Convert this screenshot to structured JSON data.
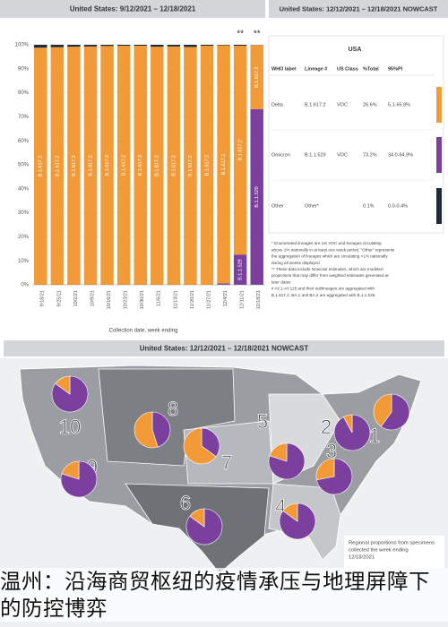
{
  "chart_data": {
    "type": "bar",
    "title": "United States: 9/12/2021 – 12/18/2021",
    "categories": [
      "9/18/21",
      "9/25/21",
      "10/2/21",
      "10/9/21",
      "10/16/21",
      "10/23/21",
      "10/30/21",
      "11/6/21",
      "11/13/21",
      "11/20/21",
      "11/27/21",
      "12/4/21",
      "12/11/21",
      "12/18/21"
    ],
    "series": [
      {
        "name": "B.1.1.529",
        "color": "#7b3f9e",
        "values": [
          0,
          0,
          0,
          0,
          0,
          0,
          0,
          0,
          0,
          0,
          0,
          0.6,
          12.6,
          73.2
        ]
      },
      {
        "name": "B.1.617.2",
        "color": "#f29a38",
        "values": [
          98.8,
          99.0,
          99.2,
          99.3,
          99.5,
          99.6,
          99.6,
          99.2,
          99.3,
          99.1,
          99.6,
          99.2,
          87.0,
          26.6
        ]
      },
      {
        "color": "#1f2a36",
        "values": [
          1.2,
          1.0,
          0.8,
          0.7,
          0.5,
          0.4,
          0.4,
          0.8,
          0.7,
          0.9,
          0.4,
          0.2,
          0.4,
          0.1
        ]
      }
    ],
    "ylim": [
      0,
      100
    ],
    "yticks": [
      {
        "value": 0,
        "label": "0%"
      },
      {
        "value": 10,
        "label": "10%"
      },
      {
        "value": 20,
        "label": "20%"
      },
      {
        "value": 30,
        "label": "30%"
      },
      {
        "value": 40,
        "label": "40%"
      },
      {
        "value": 50,
        "label": "50%"
      },
      {
        "value": 60,
        "label": "60%"
      },
      {
        "value": 70,
        "label": "70%"
      },
      {
        "value": 80,
        "label": "80%"
      },
      {
        "value": 90,
        "label": "90%"
      },
      {
        "value": 100,
        "label": "100%"
      }
    ],
    "grid": true,
    "xlabel": "Collection date, week ending",
    "annotations": [
      "**",
      "**"
    ]
  },
  "nowcast": {
    "title": "United States: 12/12/2021 – 12/18/2021 NOWCAST",
    "table_title": "USA",
    "header": [
      "WHO label",
      "Lineage #",
      "US Class",
      "%Total",
      "95%PI"
    ],
    "rows": [
      [
        "Delta",
        "B.1.617.2",
        "VOC",
        "26.6%",
        "5.1-65.8%"
      ],
      [
        "Omicron",
        "B.1.1.529",
        "VOC",
        "73.2%",
        "34.0-94.9%"
      ],
      [
        "Other",
        "Other*",
        "",
        "0.1%",
        "0.0-0.4%"
      ]
    ],
    "footnotes": [
      "*    Enumerated lineages are US VOC and lineages circulating",
      "above 1% nationally in at least one week period. \"Other\" represents",
      "the aggregation of lineages which are circulating <1% nationally",
      "during all weeks displayed",
      "**   These data include Nowcast estimates, which are modeled",
      "projections that may differ from weighted estimates generated at",
      "later dates",
      "#    AY.1-AY.125 and their sublineages are aggregated with",
      "B.1.617.2. BA.1 and BA.2 are aggregated with B.1.1.529."
    ]
  },
  "map": {
    "title": "United States: 12/12/2021 – 12/18/2021 NOWCAST",
    "note": [
      "Regional proportions from specimens",
      "collected the week ending",
      "12/18/2021"
    ],
    "regions": [
      {
        "label": "1",
        "omicron": 60,
        "delta": 40
      },
      {
        "label": "2",
        "omicron": 92,
        "delta": 8
      },
      {
        "label": "3",
        "omicron": 72,
        "delta": 28
      },
      {
        "label": "4",
        "omicron": 85,
        "delta": 15
      },
      {
        "label": "5",
        "omicron": 80,
        "delta": 20
      },
      {
        "label": "6",
        "omicron": 85,
        "delta": 15
      },
      {
        "label": "7",
        "omicron": 35,
        "delta": 65
      },
      {
        "label": "8",
        "omicron": 45,
        "delta": 55
      },
      {
        "label": "9",
        "omicron": 80,
        "delta": 20
      },
      {
        "label": "10",
        "omicron": 85,
        "delta": 15
      }
    ]
  },
  "caption": "温州：沿海商贸枢纽的疫情承压与地理屏障下的防控博弈"
}
